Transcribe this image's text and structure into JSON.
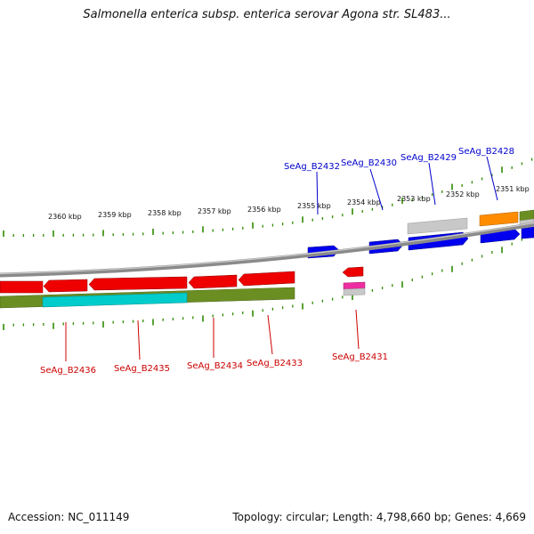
{
  "title": "Salmonella enterica subsp. enterica serovar Agona str. SL483...",
  "footer": {
    "accession": "Accession: NC_011149",
    "summary": "Topology: circular; Length: 4,798,660 bp; Genes: 4,669"
  },
  "colors": {
    "forward_label": "#0000cc",
    "reverse_label": "#cc0000",
    "tick": "#2e8b00",
    "backbone": "#8a8a8a"
  },
  "scale_labels": [
    "2360 kbp",
    "2359 kbp",
    "2358 kbp",
    "2357 kbp",
    "2356 kbp",
    "2355 kbp",
    "2354 kbp",
    "2353 kbp",
    "2352 kbp",
    "2351 kbp"
  ],
  "forward_genes": [
    {
      "name": "SeAg_B2432"
    },
    {
      "name": "SeAg_B2430"
    },
    {
      "name": "SeAg_B2429"
    },
    {
      "name": "SeAg_B2428"
    }
  ],
  "reverse_genes": [
    {
      "name": "SeAg_B2436"
    },
    {
      "name": "SeAg_B2435"
    },
    {
      "name": "SeAg_B2434"
    },
    {
      "name": "SeAg_B2433"
    },
    {
      "name": "SeAg_B2431"
    }
  ]
}
